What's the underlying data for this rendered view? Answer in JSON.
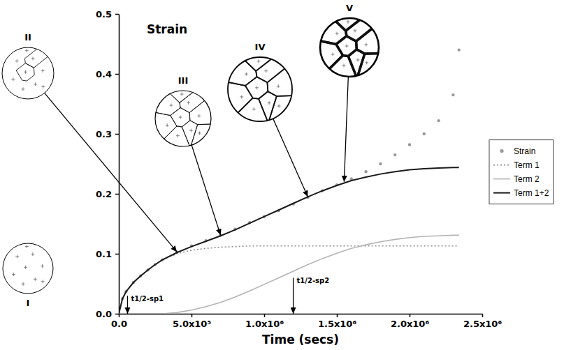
{
  "chart_data": {
    "type": "line",
    "x_label": "Time (secs)",
    "y_label": "Strain",
    "x": [
      0,
      25000,
      50000,
      100000,
      150000,
      200000,
      250000,
      300000,
      400000,
      500000,
      600000,
      700000,
      800000,
      900000,
      1000000,
      1100000,
      1200000,
      1300000,
      1400000,
      1500000,
      1600000,
      1700000,
      1800000,
      1900000,
      2000000,
      2100000,
      2200000,
      2300000,
      2340000
    ],
    "series": [
      {
        "name": "Strain",
        "type": "scatter",
        "marker": "circle",
        "color": "#999999",
        "values": [
          0,
          0.025,
          0.037,
          0.052,
          0.063,
          0.073,
          0.082,
          0.09,
          0.103,
          0.113,
          0.122,
          0.131,
          0.141,
          0.152,
          0.162,
          0.172,
          0.183,
          0.194,
          0.205,
          0.215,
          0.225,
          0.237,
          0.25,
          0.265,
          0.282,
          0.3,
          0.322,
          0.365,
          0.44
        ]
      },
      {
        "name": "Term 1",
        "type": "line",
        "line_style": "dotted",
        "color": "#8c8c8c",
        "values": [
          0,
          0.025,
          0.037,
          0.052,
          0.063,
          0.073,
          0.082,
          0.09,
          0.1,
          0.106,
          0.109,
          0.111,
          0.112,
          0.113,
          0.113,
          0.113,
          0.113,
          0.113,
          0.113,
          0.113,
          0.113,
          0.113,
          0.113,
          0.113,
          0.113,
          0.113,
          0.113,
          0.113,
          0.113
        ]
      },
      {
        "name": "Term 2",
        "type": "line",
        "line_style": "solid",
        "color": "#b3b3b3",
        "values": [
          0,
          0,
          0,
          0,
          0,
          0,
          0,
          0,
          0.002,
          0.006,
          0.012,
          0.019,
          0.028,
          0.038,
          0.049,
          0.06,
          0.071,
          0.082,
          0.092,
          0.101,
          0.109,
          0.115,
          0.12,
          0.124,
          0.127,
          0.129,
          0.13,
          0.131,
          0.131
        ]
      },
      {
        "name": "Term 1+2",
        "type": "line",
        "line_style": "solid",
        "color": "#1a1a1a",
        "values": [
          0,
          0.025,
          0.037,
          0.052,
          0.063,
          0.073,
          0.082,
          0.09,
          0.102,
          0.112,
          0.121,
          0.13,
          0.14,
          0.151,
          0.162,
          0.173,
          0.184,
          0.195,
          0.205,
          0.214,
          0.222,
          0.228,
          0.233,
          0.237,
          0.24,
          0.242,
          0.243,
          0.244,
          0.244
        ]
      }
    ],
    "xlim": [
      0,
      2500000
    ],
    "ylim": [
      0,
      0.5
    ],
    "xticks": [
      {
        "value": 0,
        "label": "0.0"
      },
      {
        "value": 500000,
        "label": "5.0x10⁵"
      },
      {
        "value": 1000000,
        "label": "1.0x10⁶"
      },
      {
        "value": 1500000,
        "label": "1.5x10⁶"
      },
      {
        "value": 2000000,
        "label": "2.0x10⁶"
      },
      {
        "value": 2500000,
        "label": "2.5x10⁶"
      }
    ],
    "yticks": [
      {
        "value": 0,
        "label": "0.0"
      },
      0.1,
      0.2,
      0.3,
      0.4,
      0.5
    ],
    "legend": "right",
    "annotations": [
      {
        "text": "I"
      },
      {
        "text": "II",
        "x": 400000,
        "y": 0.103
      },
      {
        "text": "III",
        "x": 700000,
        "y": 0.131
      },
      {
        "text": "IV",
        "x": 1300000,
        "y": 0.195
      },
      {
        "text": "V",
        "x": 1550000,
        "y": 0.22
      }
    ],
    "time_markers": [
      {
        "text": "t1/2-sp1",
        "x": 60000,
        "y": 0.03
      },
      {
        "text": "t1/2-sp2",
        "x": 1200000,
        "y": 0.06
      }
    ]
  }
}
